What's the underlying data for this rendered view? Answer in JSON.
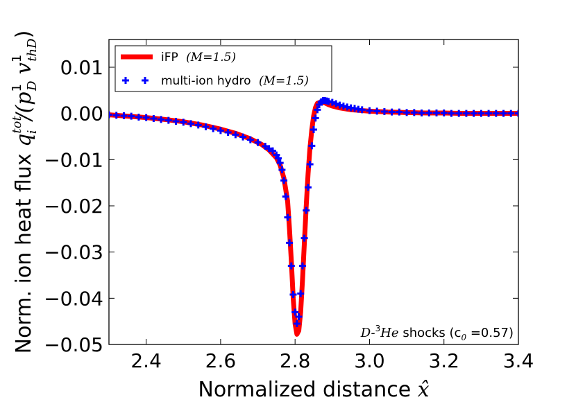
{
  "chart_data": {
    "type": "line",
    "title": "",
    "xlabel": "Normalized distance x̂",
    "ylabel": "Norm. ion heat flux q_i^tot / (p_D^1 v_thD^1)",
    "xlabel_parts": {
      "text": "Normalized distance ",
      "symbol": "x̂"
    },
    "ylabel_parts": {
      "text": "Norm. ion heat flux ",
      "symbol": "q",
      "sub": "i",
      "sup": "tot",
      "denom": "/(p",
      "denom_sub": "D",
      "denom_sup": "1",
      "v": " v",
      "v_sub": "thD",
      "v_sup": "1",
      "close": ")"
    },
    "xlim": [
      2.3,
      3.4
    ],
    "ylim": [
      -0.05,
      0.016
    ],
    "xticks": [
      "2.4",
      "2.6",
      "2.8",
      "3.0",
      "3.2",
      "3.4"
    ],
    "yticks": [
      "0.01",
      "0.00",
      "−0.01",
      "−0.02",
      "−0.03",
      "−0.04",
      "−0.05"
    ],
    "xtick_values": [
      2.4,
      2.6,
      2.8,
      3.0,
      3.2,
      3.4
    ],
    "ytick_values": [
      0.01,
      0.0,
      -0.01,
      -0.02,
      -0.03,
      -0.04,
      -0.05
    ],
    "legend_position": "top-left",
    "annotation": {
      "prefix": "D-",
      "sup": "3",
      "suffix": "He",
      "text": " shocks (c",
      "sub": "0",
      "value": " =0.57)"
    },
    "series": [
      {
        "name": "iFP (M=1.5)",
        "label_text": "iFP",
        "label_math": "(M=1.5)",
        "style": "line",
        "color": "#ff0000",
        "x": [
          2.3,
          2.35,
          2.4,
          2.45,
          2.5,
          2.55,
          2.6,
          2.64,
          2.68,
          2.71,
          2.73,
          2.75,
          2.76,
          2.77,
          2.78,
          2.785,
          2.79,
          2.795,
          2.8,
          2.805,
          2.81,
          2.815,
          2.82,
          2.825,
          2.83,
          2.835,
          2.84,
          2.845,
          2.85,
          2.855,
          2.86,
          2.87,
          2.88,
          2.89,
          2.9,
          2.92,
          2.95,
          3.0,
          3.05,
          3.1,
          3.15,
          3.2,
          3.25,
          3.3,
          3.35,
          3.4
        ],
        "y": [
          -0.0003,
          -0.0006,
          -0.0009,
          -0.0013,
          -0.0018,
          -0.0025,
          -0.0034,
          -0.0043,
          -0.0055,
          -0.0067,
          -0.0079,
          -0.0096,
          -0.0112,
          -0.014,
          -0.019,
          -0.025,
          -0.032,
          -0.04,
          -0.0455,
          -0.0478,
          -0.047,
          -0.043,
          -0.036,
          -0.028,
          -0.02,
          -0.013,
          -0.0075,
          -0.0035,
          -0.0005,
          0.0013,
          0.0022,
          0.0025,
          0.0023,
          0.0019,
          0.0016,
          0.0012,
          0.0008,
          0.0005,
          0.0003,
          0.0002,
          0.0001,
          0.0001,
          0.0,
          0.0,
          0.0,
          0.0
        ]
      },
      {
        "name": "multi-ion hydro (M=1.5)",
        "label_text": "multi-ion hydro",
        "label_math": "(M=1.5)",
        "style": "markers",
        "color": "#0000ff",
        "x": [
          2.3,
          2.32,
          2.34,
          2.36,
          2.38,
          2.4,
          2.42,
          2.44,
          2.46,
          2.48,
          2.5,
          2.52,
          2.54,
          2.56,
          2.58,
          2.6,
          2.62,
          2.64,
          2.66,
          2.68,
          2.7,
          2.72,
          2.73,
          2.74,
          2.75,
          2.755,
          2.76,
          2.765,
          2.77,
          2.775,
          2.78,
          2.785,
          2.79,
          2.795,
          2.8,
          2.805,
          2.81,
          2.815,
          2.82,
          2.825,
          2.83,
          2.835,
          2.84,
          2.845,
          2.85,
          2.855,
          2.86,
          2.865,
          2.87,
          2.875,
          2.88,
          2.885,
          2.89,
          2.9,
          2.91,
          2.92,
          2.93,
          2.94,
          2.95,
          2.96,
          2.97,
          2.98,
          3.0,
          3.02,
          3.04,
          3.06,
          3.08,
          3.1,
          3.12,
          3.14,
          3.16,
          3.18,
          3.2,
          3.22,
          3.24,
          3.26,
          3.28,
          3.3,
          3.32,
          3.34,
          3.36,
          3.38,
          3.4
        ],
        "y": [
          -0.0003,
          -0.0004,
          -0.0005,
          -0.0006,
          -0.0008,
          -0.0009,
          -0.0011,
          -0.0013,
          -0.0015,
          -0.0017,
          -0.0019,
          -0.0022,
          -0.0025,
          -0.0029,
          -0.0033,
          -0.0037,
          -0.0041,
          -0.0046,
          -0.0051,
          -0.0057,
          -0.0063,
          -0.0071,
          -0.0076,
          -0.0081,
          -0.009,
          -0.0097,
          -0.0107,
          -0.0122,
          -0.0145,
          -0.018,
          -0.0225,
          -0.028,
          -0.033,
          -0.0392,
          -0.043,
          -0.0455,
          -0.044,
          -0.039,
          -0.033,
          -0.027,
          -0.021,
          -0.016,
          -0.011,
          -0.007,
          -0.0035,
          -0.001,
          0.0008,
          0.0019,
          0.0025,
          0.0028,
          0.0028,
          0.0027,
          0.0026,
          0.0024,
          0.0021,
          0.0018,
          0.0016,
          0.0014,
          0.0012,
          0.0011,
          0.0009,
          0.0008,
          0.0006,
          0.0005,
          0.0004,
          0.0003,
          0.0003,
          0.0002,
          0.0002,
          0.0001,
          0.0001,
          0.0001,
          0.0001,
          0.0,
          0.0,
          0.0,
          0.0,
          0.0,
          0.0,
          0.0,
          0.0,
          0.0,
          0.0
        ]
      }
    ]
  }
}
